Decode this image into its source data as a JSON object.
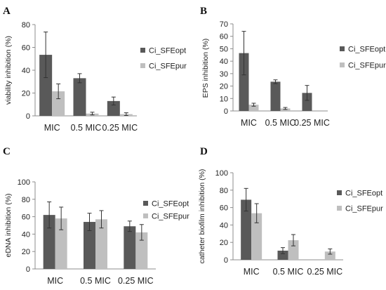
{
  "colors": {
    "series1": "#595959",
    "series2": "#bfbfbf",
    "axis": "#8c8c8c",
    "errorbar": "#333333"
  },
  "chart_data": [
    {
      "type": "bar",
      "panel": "A",
      "ylabel": "viability inhibition (%)",
      "categories": [
        "MIC",
        "0.5 MIC",
        "0.25 MIC"
      ],
      "ylim": [
        0,
        80
      ],
      "yticks": [
        "0",
        "20",
        "40",
        "60",
        "80"
      ],
      "grid": false,
      "legend_position": "right",
      "series": [
        {
          "name": "Ci_SFEopt",
          "values": [
            53.5,
            33,
            13
          ],
          "errors": [
            20,
            4,
            3.5
          ]
        },
        {
          "name": "Ci_SFEpur",
          "values": [
            21.5,
            2,
            1.5
          ],
          "errors": [
            6.5,
            1.2,
            1.2
          ]
        }
      ]
    },
    {
      "type": "bar",
      "panel": "B",
      "ylabel": "EPS inhibition (%)",
      "categories": [
        "MIC",
        "0.5 MIC",
        "0.25 MIC"
      ],
      "ylim": [
        0,
        70
      ],
      "yticks": [
        "0",
        "10",
        "20",
        "30",
        "40",
        "50",
        "60",
        "70"
      ],
      "grid": false,
      "legend_position": "right",
      "series": [
        {
          "name": "Ci_SFEopt",
          "values": [
            46.5,
            23.5,
            14.5
          ],
          "errors": [
            17.5,
            1.5,
            6
          ]
        },
        {
          "name": "Ci_SFEpur",
          "values": [
            5,
            2,
            null
          ],
          "errors": [
            1.2,
            0.8,
            null
          ]
        }
      ]
    },
    {
      "type": "bar",
      "panel": "C",
      "ylabel": "eDNA inhibition (%)",
      "categories": [
        "MIC",
        "0.5 MIC",
        "0.25 MIC"
      ],
      "ylim": [
        0,
        100
      ],
      "yticks": [
        "0",
        "20",
        "40",
        "60",
        "80",
        "100"
      ],
      "grid": false,
      "legend_position": "right",
      "series": [
        {
          "name": "Ci_SFEopt",
          "values": [
            62,
            54,
            49
          ],
          "errors": [
            15,
            10,
            6
          ]
        },
        {
          "name": "Ci_SFEpur",
          "values": [
            58,
            57,
            42
          ],
          "errors": [
            13,
            10,
            9
          ]
        }
      ]
    },
    {
      "type": "bar",
      "panel": "D",
      "ylabel": "catheter biofilm inhibition (%)",
      "categories": [
        "MIC",
        "0.5 MIC",
        "0.25 MIC"
      ],
      "ylim": [
        0,
        100
      ],
      "yticks": [
        "0",
        "20",
        "40",
        "60",
        "80",
        "100"
      ],
      "grid": false,
      "legend_position": "right",
      "series": [
        {
          "name": "Ci_SFEopt",
          "values": [
            69,
            10.5,
            null
          ],
          "errors": [
            13,
            3.5,
            null
          ]
        },
        {
          "name": "Ci_SFEpur",
          "values": [
            53.5,
            22.5,
            9.5
          ],
          "errors": [
            11,
            6.5,
            3
          ]
        }
      ]
    }
  ]
}
